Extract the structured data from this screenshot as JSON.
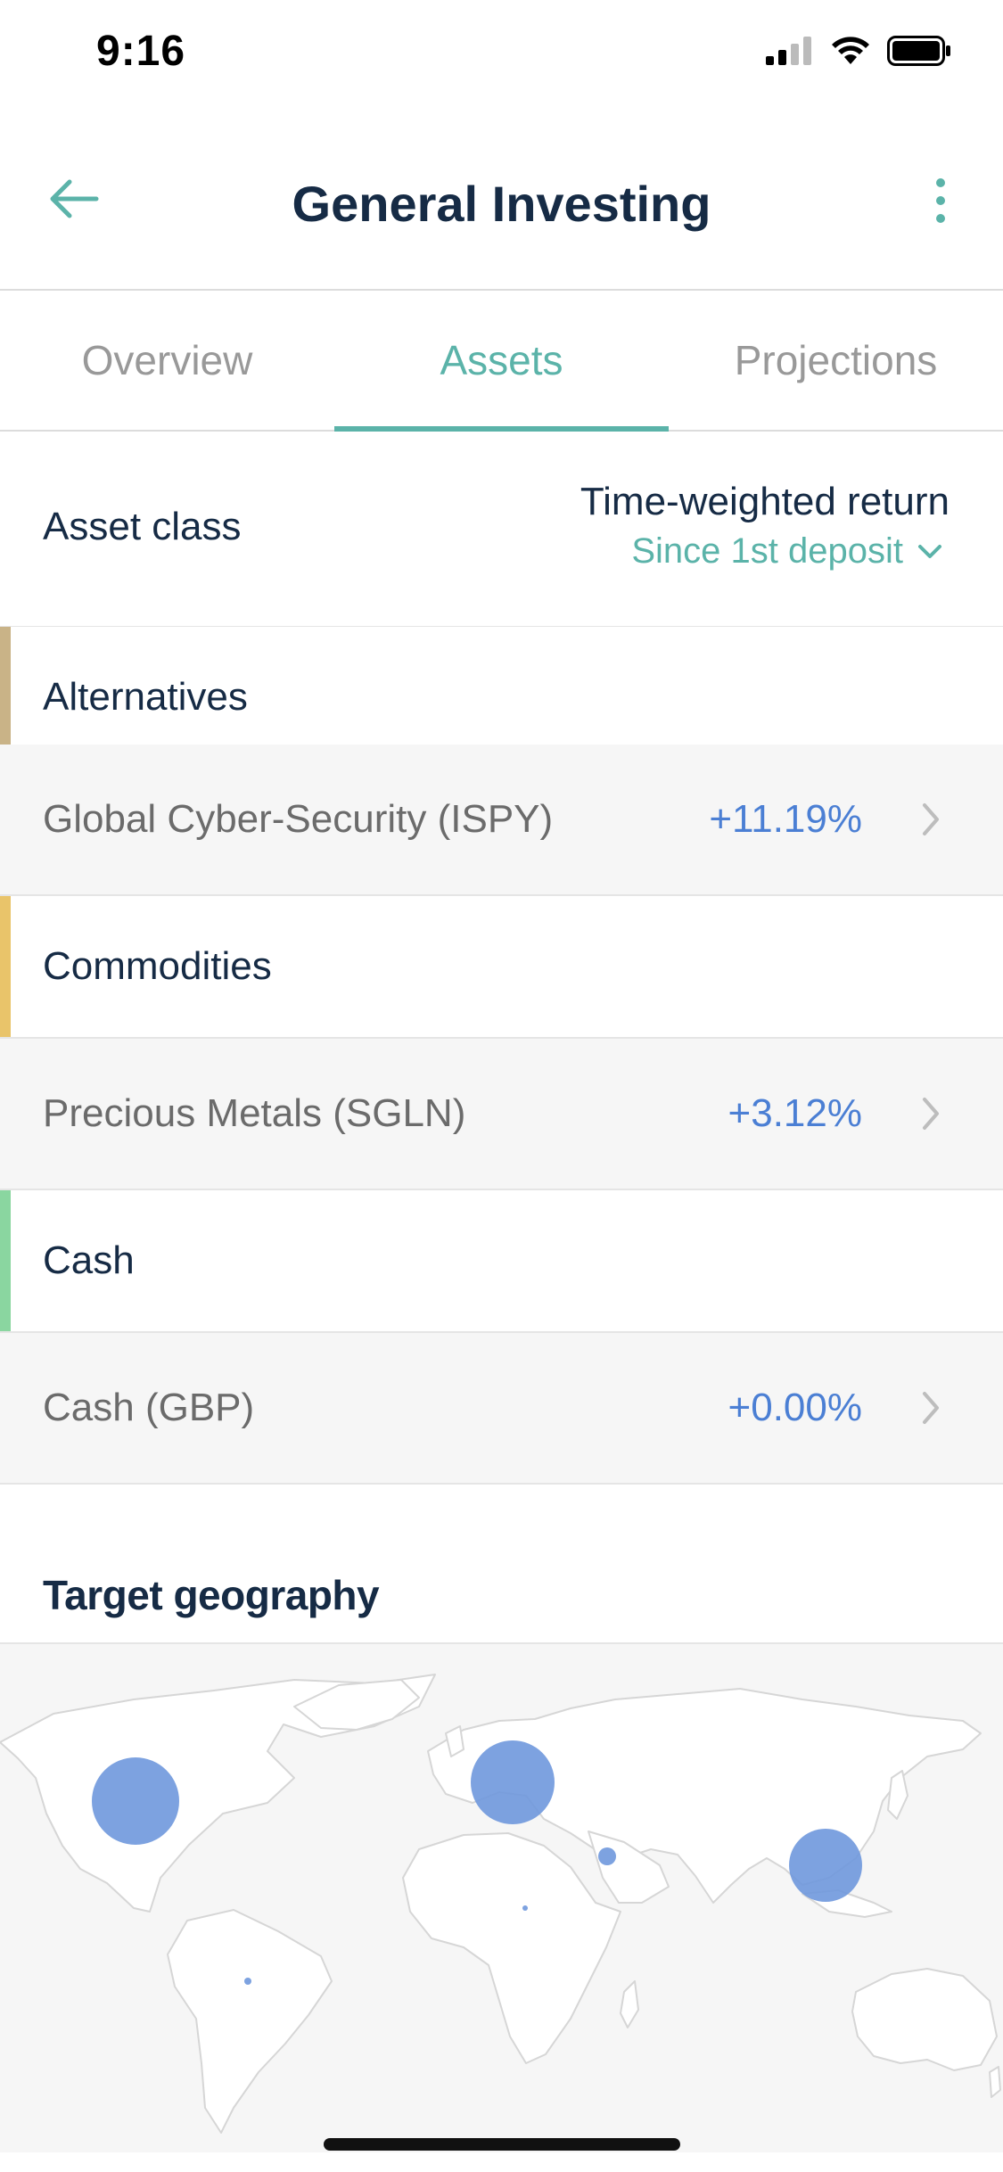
{
  "status": {
    "time": "9:16"
  },
  "nav": {
    "title": "General Investing"
  },
  "tabs": [
    {
      "label": "Overview",
      "active": false
    },
    {
      "label": "Assets",
      "active": true
    },
    {
      "label": "Projections",
      "active": false
    }
  ],
  "list_header": {
    "left": "Asset class",
    "right_title": "Time-weighted return",
    "period": "Since 1st deposit"
  },
  "groups": [
    {
      "category": "Alternatives",
      "color": "#c9b387",
      "asset": {
        "name": "Global Cyber-Security (ISPY)",
        "return": "+11.19%"
      }
    },
    {
      "category": "Commodities",
      "color": "#e9c46a",
      "asset": {
        "name": "Precious Metals (SGLN)",
        "return": "+3.12%"
      }
    },
    {
      "category": "Cash",
      "color": "#8ad6a0",
      "asset": {
        "name": "Cash (GBP)",
        "return": "+0.00%"
      }
    }
  ],
  "geography": {
    "title": "Target geography"
  },
  "colors": {
    "accent": "#5bb3a9",
    "value": "#4b7fd4",
    "bubble": "#6f98dd",
    "title": "#162b45"
  }
}
